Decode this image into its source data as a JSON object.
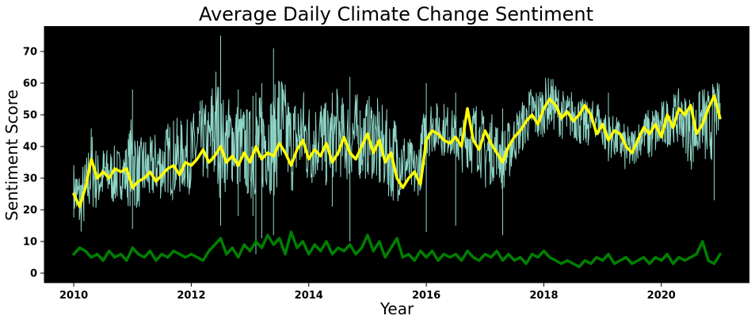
{
  "chart_data": {
    "type": "line",
    "title": "Average Daily Climate Change Sentiment",
    "xlabel": "Year",
    "ylabel": "Sentiment Score",
    "xlim": [
      2009.5,
      2021.5
    ],
    "ylim": [
      -3,
      78
    ],
    "x_ticks": [
      2010,
      2012,
      2014,
      2016,
      2018,
      2020
    ],
    "x_tick_labels": [
      "2010",
      "2012",
      "2014",
      "2016",
      "2018",
      "2020"
    ],
    "y_ticks": [
      0,
      10,
      20,
      30,
      40,
      50,
      60,
      70
    ],
    "y_tick_labels": [
      "0",
      "10",
      "20",
      "30",
      "40",
      "50",
      "60",
      "70"
    ],
    "grid": false,
    "background": "#000000",
    "series": [
      {
        "style": "daily",
        "color": "#8fd8c8",
        "x": [
          2010.0,
          2010.1,
          2010.2,
          2010.3,
          2010.4,
          2010.5,
          2010.6,
          2010.7,
          2010.8,
          2010.9,
          2011.0,
          2011.1,
          2011.2,
          2011.3,
          2011.4,
          2011.5,
          2011.6,
          2011.7,
          2011.8,
          2011.9,
          2012.0,
          2012.1,
          2012.2,
          2012.3,
          2012.4,
          2012.5,
          2012.6,
          2012.7,
          2012.8,
          2012.9,
          2013.0,
          2013.1,
          2013.2,
          2013.3,
          2013.4,
          2013.5,
          2013.6,
          2013.7,
          2013.8,
          2013.9,
          2014.0,
          2014.1,
          2014.2,
          2014.3,
          2014.4,
          2014.5,
          2014.6,
          2014.7,
          2014.8,
          2014.9,
          2015.0,
          2015.1,
          2015.2,
          2015.3,
          2015.4,
          2015.5,
          2015.6,
          2015.7,
          2015.8,
          2015.9,
          2016.0,
          2016.1,
          2016.2,
          2016.3,
          2016.4,
          2016.5,
          2016.6,
          2016.7,
          2016.8,
          2016.9,
          2017.0,
          2017.1,
          2017.2,
          2017.3,
          2017.4,
          2017.5,
          2017.6,
          2017.7,
          2017.8,
          2017.9,
          2018.0,
          2018.1,
          2018.2,
          2018.3,
          2018.4,
          2018.5,
          2018.6,
          2018.7,
          2018.8,
          2018.9,
          2019.0,
          2019.1,
          2019.2,
          2019.3,
          2019.4,
          2019.5,
          2019.6,
          2019.7,
          2019.8,
          2019.9,
          2020.0,
          2020.1,
          2020.2,
          2020.3,
          2020.4,
          2020.5,
          2020.6,
          2020.7,
          2020.8,
          2020.9,
          2021.0
        ],
        "low": [
          16,
          9,
          13,
          17,
          18,
          20,
          21,
          19,
          22,
          20,
          17,
          18,
          20,
          19,
          22,
          21,
          23,
          20,
          22,
          24,
          22,
          24,
          26,
          25,
          19,
          21,
          23,
          25,
          24,
          22,
          20,
          21,
          22,
          23,
          21,
          24,
          26,
          22,
          25,
          27,
          23,
          26,
          28,
          24,
          27,
          29,
          25,
          27,
          29,
          26,
          28,
          27,
          21,
          24,
          20,
          20,
          22,
          23,
          21,
          24,
          34,
          36,
          37,
          35,
          36,
          34,
          30,
          32,
          28,
          30,
          23,
          26,
          29,
          24,
          27,
          33,
          36,
          38,
          41,
          39,
          42,
          44,
          43,
          41,
          40,
          41,
          39,
          37,
          40,
          42,
          38,
          34,
          35,
          33,
          30,
          31,
          35,
          37,
          33,
          35,
          36,
          38,
          40,
          39,
          37,
          30,
          32,
          38,
          24,
          40,
          40
        ],
        "high": [
          37,
          36,
          38,
          50,
          40,
          42,
          41,
          42,
          41,
          43,
          55,
          44,
          46,
          45,
          47,
          46,
          50,
          52,
          51,
          50,
          52,
          56,
          58,
          55,
          75,
          60,
          58,
          60,
          57,
          56,
          55,
          58,
          60,
          62,
          60,
          71,
          63,
          58,
          60,
          62,
          58,
          57,
          59,
          56,
          58,
          62,
          57,
          59,
          60,
          57,
          58,
          60,
          57,
          55,
          52,
          54,
          48,
          45,
          42,
          46,
          60,
          57,
          55,
          56,
          54,
          52,
          50,
          52,
          58,
          56,
          52,
          53,
          50,
          48,
          50,
          52,
          55,
          58,
          62,
          60,
          63,
          64,
          62,
          60,
          58,
          60,
          58,
          56,
          55,
          57,
          53,
          52,
          51,
          50,
          48,
          47,
          49,
          52,
          54,
          55,
          56,
          57,
          58,
          60,
          58,
          59,
          58,
          61,
          62,
          62,
          62
        ],
        "spike_x": [
          2011.0,
          2012.5,
          2013.4,
          2013.1,
          2013.2,
          2013.05,
          2014.7,
          2014.4,
          2016.0,
          2016.5,
          2017.3,
          2019.1,
          2020.9,
          2012.8
        ],
        "spike_low": [
          14,
          15,
          12,
          6,
          11,
          18,
          10,
          21,
          13,
          15,
          12,
          40,
          23,
          18
        ],
        "spike_high": [
          58,
          75,
          71,
          57,
          60,
          56,
          62,
          57,
          60,
          57,
          52,
          57,
          58,
          58
        ]
      },
      {
        "style": "rolling-mean",
        "color": "#ffff00",
        "x": [
          2010.0,
          2010.1,
          2010.2,
          2010.3,
          2010.4,
          2010.5,
          2010.6,
          2010.7,
          2010.8,
          2010.9,
          2011.0,
          2011.1,
          2011.2,
          2011.3,
          2011.4,
          2011.5,
          2011.6,
          2011.7,
          2011.8,
          2011.9,
          2012.0,
          2012.1,
          2012.2,
          2012.3,
          2012.4,
          2012.5,
          2012.6,
          2012.7,
          2012.8,
          2012.9,
          2013.0,
          2013.1,
          2013.2,
          2013.3,
          2013.4,
          2013.5,
          2013.6,
          2013.7,
          2013.8,
          2013.9,
          2014.0,
          2014.1,
          2014.2,
          2014.3,
          2014.4,
          2014.5,
          2014.6,
          2014.7,
          2014.8,
          2014.9,
          2015.0,
          2015.1,
          2015.2,
          2015.3,
          2015.4,
          2015.5,
          2015.6,
          2015.7,
          2015.8,
          2015.9,
          2016.0,
          2016.1,
          2016.2,
          2016.3,
          2016.4,
          2016.5,
          2016.6,
          2016.7,
          2016.8,
          2016.9,
          2017.0,
          2017.1,
          2017.2,
          2017.3,
          2017.4,
          2017.5,
          2017.6,
          2017.7,
          2017.8,
          2017.9,
          2018.0,
          2018.1,
          2018.2,
          2018.3,
          2018.4,
          2018.5,
          2018.6,
          2018.7,
          2018.8,
          2018.9,
          2019.0,
          2019.1,
          2019.2,
          2019.3,
          2019.4,
          2019.5,
          2019.6,
          2019.7,
          2019.8,
          2019.9,
          2020.0,
          2020.1,
          2020.2,
          2020.3,
          2020.4,
          2020.5,
          2020.6,
          2020.7,
          2020.8,
          2020.9,
          2021.0
        ],
        "y": [
          25,
          21,
          27,
          36,
          30,
          32,
          30,
          33,
          32,
          33,
          27,
          29,
          30,
          32,
          29,
          31,
          33,
          34,
          31,
          35,
          34,
          36,
          39,
          35,
          37,
          40,
          35,
          37,
          34,
          38,
          35,
          40,
          36,
          38,
          37,
          41,
          38,
          34,
          39,
          42,
          36,
          39,
          37,
          41,
          35,
          38,
          43,
          38,
          36,
          40,
          44,
          38,
          42,
          35,
          38,
          30,
          27,
          30,
          32,
          28,
          42,
          45,
          44,
          42,
          41,
          43,
          40,
          52,
          42,
          39,
          45,
          41,
          38,
          35,
          40,
          43,
          45,
          48,
          50,
          47,
          52,
          55,
          53,
          49,
          51,
          48,
          50,
          53,
          50,
          44,
          47,
          42,
          45,
          44,
          40,
          38,
          42,
          46,
          44,
          47,
          43,
          50,
          46,
          52,
          50,
          53,
          44,
          47,
          52,
          56,
          49
        ]
      },
      {
        "style": "negative-rolling-mean",
        "color": "#008000",
        "x": [
          2010.0,
          2010.1,
          2010.2,
          2010.3,
          2010.4,
          2010.5,
          2010.6,
          2010.7,
          2010.8,
          2010.9,
          2011.0,
          2011.1,
          2011.2,
          2011.3,
          2011.4,
          2011.5,
          2011.6,
          2011.7,
          2011.8,
          2011.9,
          2012.0,
          2012.1,
          2012.2,
          2012.3,
          2012.4,
          2012.5,
          2012.6,
          2012.7,
          2012.8,
          2012.9,
          2013.0,
          2013.1,
          2013.2,
          2013.3,
          2013.4,
          2013.5,
          2013.6,
          2013.7,
          2013.8,
          2013.9,
          2014.0,
          2014.1,
          2014.2,
          2014.3,
          2014.4,
          2014.5,
          2014.6,
          2014.7,
          2014.8,
          2014.9,
          2015.0,
          2015.1,
          2015.2,
          2015.3,
          2015.4,
          2015.5,
          2015.6,
          2015.7,
          2015.8,
          2015.9,
          2016.0,
          2016.1,
          2016.2,
          2016.3,
          2016.4,
          2016.5,
          2016.6,
          2016.7,
          2016.8,
          2016.9,
          2017.0,
          2017.1,
          2017.2,
          2017.3,
          2017.4,
          2017.5,
          2017.6,
          2017.7,
          2017.8,
          2017.9,
          2018.0,
          2018.1,
          2018.2,
          2018.3,
          2018.4,
          2018.5,
          2018.6,
          2018.7,
          2018.8,
          2018.9,
          2019.0,
          2019.1,
          2019.2,
          2019.3,
          2019.4,
          2019.5,
          2019.6,
          2019.7,
          2019.8,
          2019.9,
          2020.0,
          2020.1,
          2020.2,
          2020.3,
          2020.4,
          2020.5,
          2020.6,
          2020.7,
          2020.8,
          2020.9,
          2021.0
        ],
        "y": [
          6,
          8,
          7,
          5,
          6,
          4,
          7,
          5,
          6,
          4,
          8,
          6,
          5,
          7,
          4,
          6,
          5,
          7,
          6,
          5,
          6,
          5,
          4,
          7,
          9,
          11,
          6,
          8,
          5,
          9,
          7,
          10,
          8,
          12,
          9,
          11,
          6,
          13,
          8,
          10,
          6,
          9,
          7,
          10,
          6,
          8,
          7,
          9,
          6,
          8,
          12,
          7,
          10,
          5,
          8,
          11,
          5,
          6,
          4,
          7,
          5,
          7,
          4,
          6,
          5,
          6,
          4,
          7,
          5,
          4,
          6,
          5,
          7,
          4,
          6,
          4,
          5,
          3,
          6,
          5,
          7,
          5,
          4,
          3,
          4,
          3,
          2,
          4,
          3,
          5,
          4,
          6,
          3,
          4,
          5,
          3,
          4,
          5,
          3,
          5,
          4,
          6,
          3,
          5,
          4,
          5,
          6,
          10,
          4,
          3,
          6
        ]
      }
    ]
  }
}
